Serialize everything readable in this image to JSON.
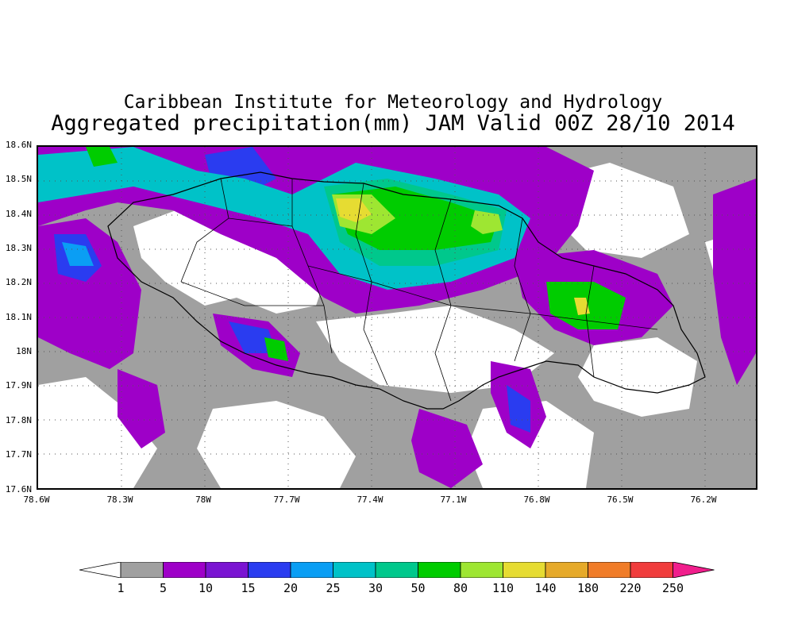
{
  "title": {
    "line1": "Caribbean Institute for Meteorology and Hydrology",
    "line2": "Aggregated precipitation(mm) JAM Valid 00Z 28/10 2014"
  },
  "axes": {
    "lat_labels": [
      "18.6N",
      "18.5N",
      "18.4N",
      "18.3N",
      "18.2N",
      "18.1N",
      "18N",
      "17.9N",
      "17.8N",
      "17.7N",
      "17.6N"
    ],
    "lon_labels": [
      "78.6W",
      "78.3W",
      "78W",
      "77.7W",
      "77.4W",
      "77.1W",
      "76.8W",
      "76.5W",
      "76.2W"
    ],
    "lat_range": [
      17.6,
      18.6
    ],
    "lon_range": [
      -78.6,
      -76.1
    ],
    "grid": "dotted"
  },
  "colorbar": {
    "labels": [
      "1",
      "5",
      "10",
      "15",
      "20",
      "25",
      "30",
      "50",
      "80",
      "110",
      "140",
      "180",
      "220",
      "250"
    ],
    "colors": [
      "#ffffff",
      "#a0a0a0",
      "#9e00c8",
      "#7a14d2",
      "#2a3cf0",
      "#0a9ef4",
      "#00c2c8",
      "#00c88c",
      "#00cc00",
      "#9ee632",
      "#e6dc32",
      "#e6aa2a",
      "#f07c28",
      "#f03c3c",
      "#f01e8c"
    ]
  },
  "map": {
    "region": "Jamaica",
    "precip_legend_colors": {
      "gray": "#a0a0a0",
      "purple": "#9e00c8",
      "violet": "#7a14d2",
      "blue": "#2a3cf0",
      "sky": "#0a9ef4",
      "teal": "#00c2c8",
      "seagreen": "#00c88c",
      "green": "#00cc00",
      "lime": "#9ee632",
      "yellow": "#e6dc32"
    }
  }
}
